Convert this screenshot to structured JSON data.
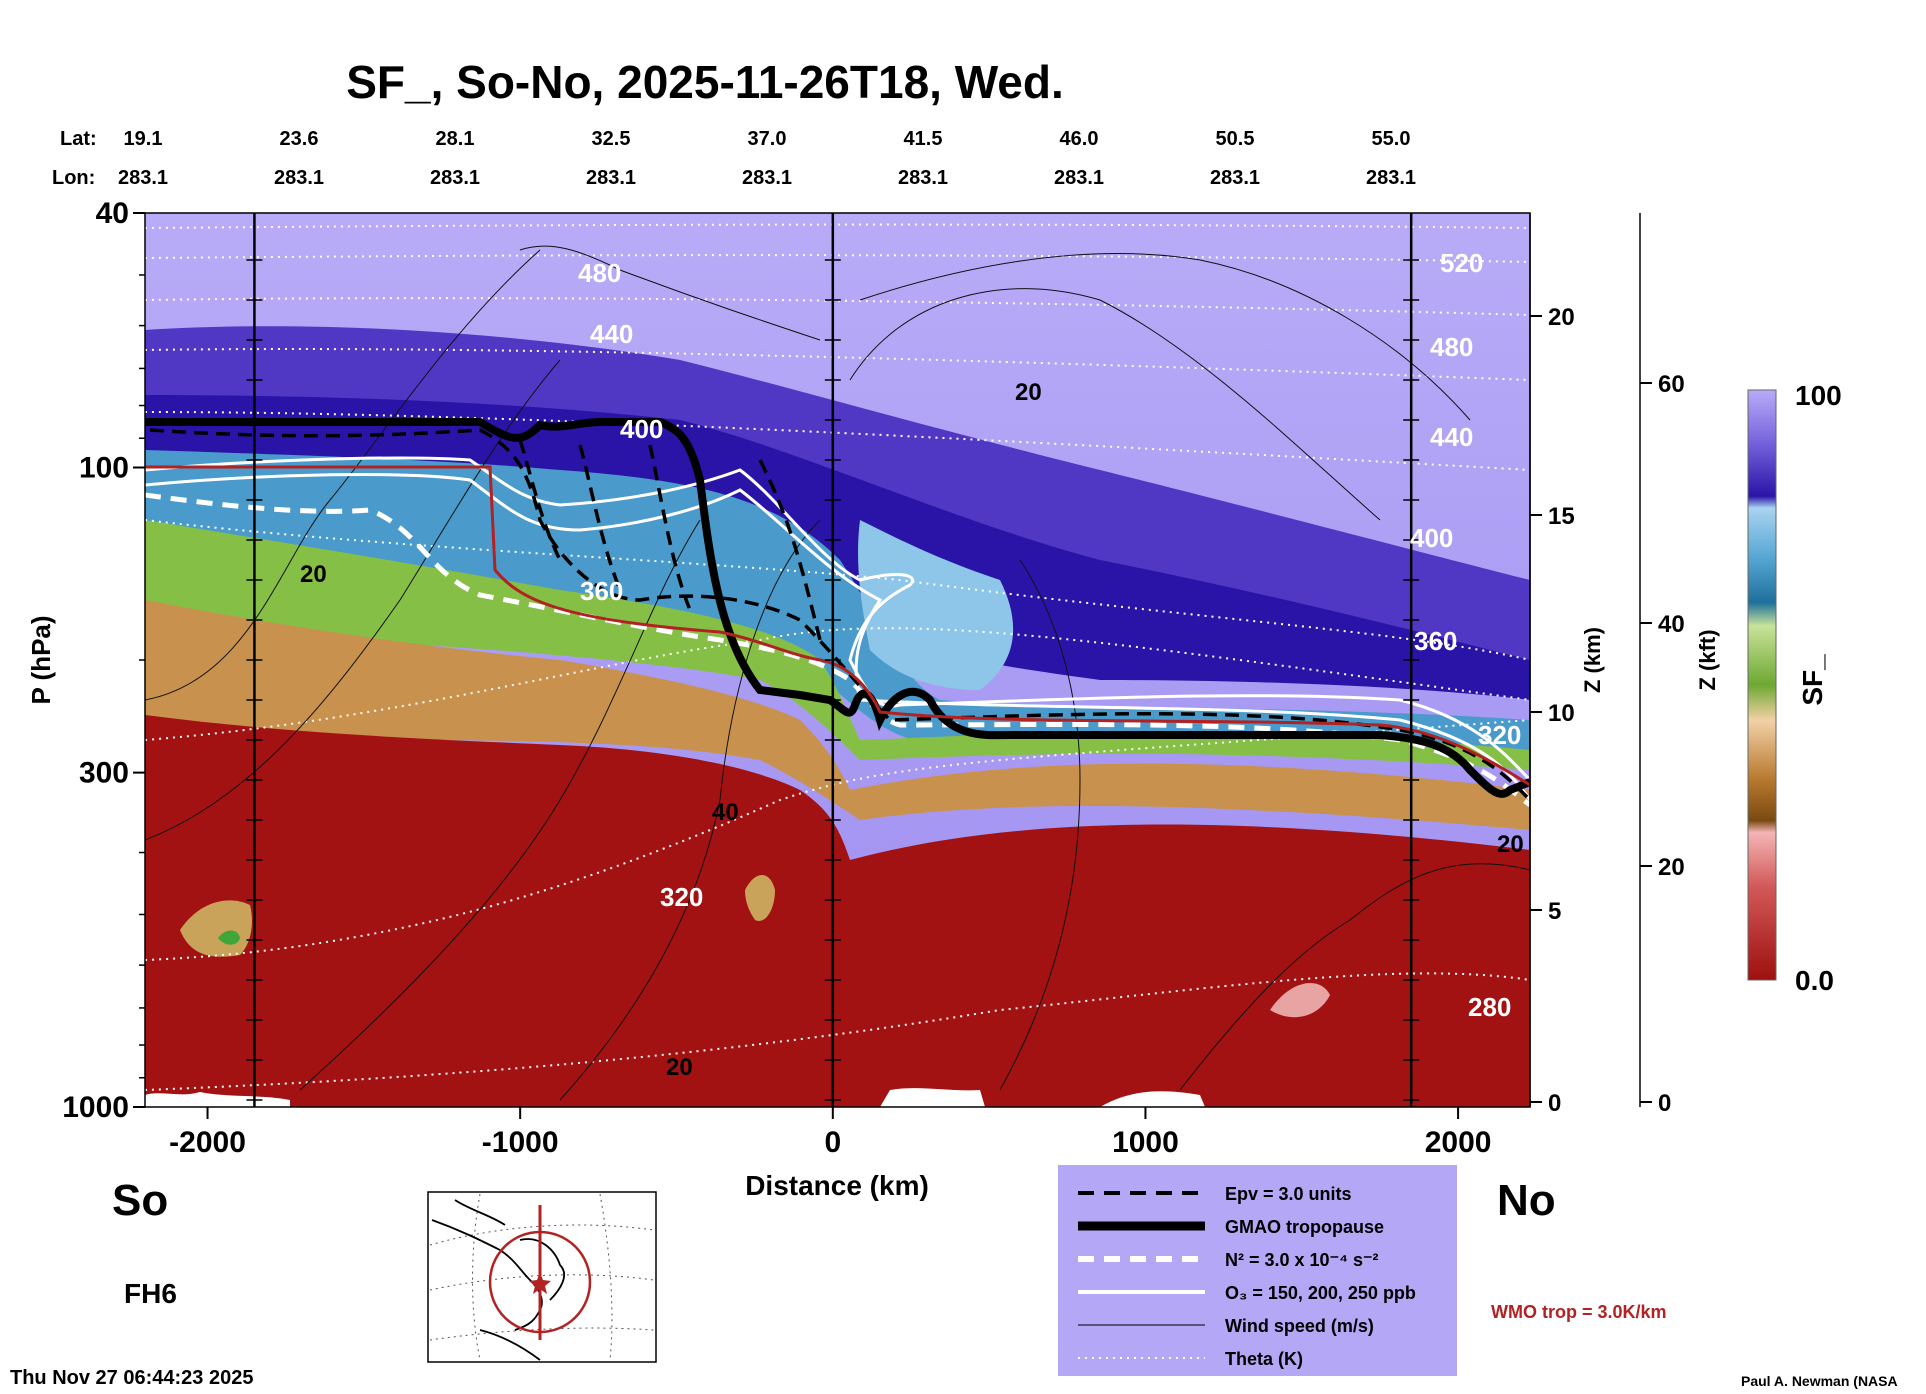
{
  "title": "SF_, So-No, 2025-11-26T18, Wed.",
  "header": {
    "lat_label": "Lat:",
    "lon_label": "Lon:",
    "lats": [
      "19.1",
      "23.6",
      "28.1",
      "32.5",
      "37.0",
      "41.5",
      "46.0",
      "50.5",
      "55.0"
    ],
    "lons": [
      "283.1",
      "283.1",
      "283.1",
      "283.1",
      "283.1",
      "283.1",
      "283.1",
      "283.1",
      "283.1"
    ]
  },
  "chart_data": {
    "type": "heatmap",
    "xlabel": "Distance (km)",
    "ylabel": "P (hPa)",
    "xlim": [
      -2200,
      2230
    ],
    "ylim": [
      1000,
      40
    ],
    "y_scale": "log",
    "x_ticks": [
      -2000,
      -1000,
      0,
      1000,
      2000
    ],
    "x_tick_labels": [
      "-2000",
      "-1000",
      "0",
      "1000",
      "2000"
    ],
    "y_tick_labels": [
      "40",
      "100",
      "300",
      "1000"
    ],
    "z_km_axis": {
      "label": "Z (km)",
      "ticks": [
        "20",
        "15",
        "10",
        "5",
        "0"
      ]
    },
    "z_kft_axis": {
      "label": "Z (kft)",
      "ticks": [
        "60",
        "40",
        "20",
        "0"
      ]
    },
    "colorbar": {
      "label": "SF_",
      "max_label": "100",
      "min_label": "0.0"
    },
    "theta_labels": [
      "520",
      "480",
      "440",
      "400",
      "360",
      "320",
      "280",
      "320",
      "360",
      "400",
      "440",
      "480"
    ],
    "wind_labels": [
      "20",
      "20",
      "40",
      "20",
      "20"
    ],
    "vertical_markers_km": [
      -1850,
      0,
      1850
    ],
    "colors": {
      "stratosphere_light": "#b4a7f5",
      "stratosphere_dark": "#2a14a8",
      "blue": "#3d8fc0",
      "green": "#8fc44a",
      "tan": "#c99655",
      "red": "#a51414",
      "wmo_trop": "#b22222"
    }
  },
  "side_labels": {
    "left": "So",
    "right": "No",
    "forecast": "FH6"
  },
  "legend": {
    "items": [
      {
        "label": "Epv = 3.0 units",
        "style": "dash-black"
      },
      {
        "label": "GMAO tropopause",
        "style": "thick-black"
      },
      {
        "label": "N² = 3.0 x 10⁻⁴ s⁻²",
        "style": "dash-white"
      },
      {
        "label": "O₃ = 150, 200, 250 ppb",
        "style": "solid-white"
      },
      {
        "label": "Wind speed (m/s)",
        "style": "thin-black"
      },
      {
        "label": "Theta (K)",
        "style": "dot-white"
      }
    ],
    "wmo_label": "WMO trop = 3.0K/km"
  },
  "footer": {
    "timestamp": "Thu Nov 27 06:44:23 2025",
    "credit": "Paul A. Newman (NASA"
  },
  "map": {
    "icon": "globe-map-icon"
  }
}
